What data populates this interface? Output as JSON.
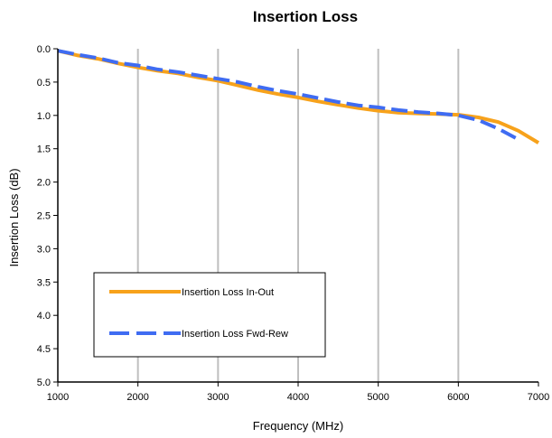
{
  "chart_data": {
    "type": "line",
    "title": "Insertion Loss",
    "xlabel": "Frequency (MHz)",
    "ylabel": "Insertion Loss (dB)",
    "xlim": [
      1000,
      7000
    ],
    "ylim": [
      0,
      5
    ],
    "y_inverted": true,
    "x_ticks": [
      "1000",
      "2000",
      "3000",
      "4000",
      "5000",
      "6000",
      "7000"
    ],
    "y_ticks": [
      "0.0",
      "0.5",
      "1.0",
      "1.5",
      "2.0",
      "2.5",
      "3.0",
      "3.5",
      "4.0",
      "4.5",
      "5.0"
    ],
    "grid": "vertical",
    "legend": "bottom-left",
    "series": [
      {
        "name": "Insertion Loss In-Out",
        "color": "#F7A21B",
        "style": "solid",
        "x": [
          1000,
          1250,
          1500,
          1750,
          2000,
          2250,
          2500,
          2750,
          3000,
          3250,
          3500,
          3750,
          4000,
          4250,
          4500,
          4750,
          5000,
          5250,
          5500,
          5750,
          6000,
          6250,
          6500,
          6750,
          7000
        ],
        "y": [
          0.03,
          0.1,
          0.15,
          0.22,
          0.28,
          0.33,
          0.37,
          0.43,
          0.48,
          0.55,
          0.62,
          0.68,
          0.73,
          0.79,
          0.84,
          0.89,
          0.93,
          0.96,
          0.97,
          0.98,
          0.99,
          1.03,
          1.1,
          1.23,
          1.41
        ]
      },
      {
        "name": "Insertion Loss Fwd-Rew",
        "color": "#3F6CF2",
        "style": "dashed",
        "x": [
          1000,
          1250,
          1500,
          1750,
          2000,
          2250,
          2500,
          2750,
          3000,
          3250,
          3500,
          3750,
          4000,
          4250,
          4500,
          4750,
          5000,
          5250,
          5500,
          5750,
          6000,
          6250,
          6500,
          6750
        ],
        "y": [
          0.03,
          0.09,
          0.14,
          0.21,
          0.25,
          0.31,
          0.35,
          0.4,
          0.45,
          0.5,
          0.57,
          0.63,
          0.68,
          0.74,
          0.8,
          0.85,
          0.88,
          0.92,
          0.95,
          0.97,
          1.0,
          1.07,
          1.2,
          1.36
        ]
      }
    ]
  }
}
